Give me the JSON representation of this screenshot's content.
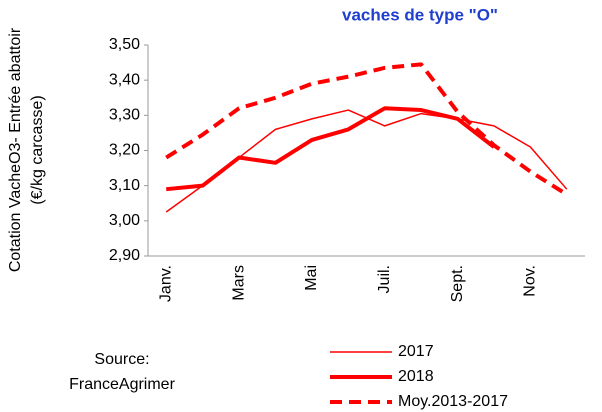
{
  "chart_data": {
    "type": "line",
    "title": "vaches de type \"O\"",
    "ylabel": [
      "Cotation  VacheO3- Entrée abattoir",
      "(€/kg carcasse)"
    ],
    "annotation": [
      "Source:",
      "FranceAgrimer"
    ],
    "categories": [
      "Janv.",
      null,
      "Mars",
      null,
      "Mai",
      null,
      "Juil.",
      null,
      "Sept.",
      null,
      "Nov.",
      null
    ],
    "ylim": [
      2.9,
      3.5
    ],
    "yticks": [
      {
        "value": 2.9,
        "label": "2,90"
      },
      {
        "value": 3.0,
        "label": "3,00"
      },
      {
        "value": 3.1,
        "label": "3,10"
      },
      {
        "value": 3.2,
        "label": "3,20"
      },
      {
        "value": 3.3,
        "label": "3,30"
      },
      {
        "value": 3.4,
        "label": "3,40"
      },
      {
        "value": 3.5,
        "label": "3,50"
      }
    ],
    "series": [
      {
        "name": "2017",
        "color": "#ff0000",
        "style": "thin",
        "values": [
          3.025,
          3.1,
          3.18,
          3.26,
          3.29,
          3.315,
          3.27,
          3.305,
          3.29,
          3.27,
          3.21,
          3.09
        ]
      },
      {
        "name": "2018",
        "color": "#ff0000",
        "style": "thick",
        "values": [
          3.09,
          3.1,
          3.18,
          3.165,
          3.23,
          3.26,
          3.32,
          3.315,
          3.29,
          3.21,
          null,
          null
        ]
      },
      {
        "name": "Moy.2013-2017",
        "color": "#ff0000",
        "style": "dashed",
        "values": [
          3.18,
          3.245,
          3.32,
          3.35,
          3.39,
          3.41,
          3.435,
          3.445,
          3.31,
          3.215,
          3.14,
          3.075
        ]
      }
    ]
  }
}
